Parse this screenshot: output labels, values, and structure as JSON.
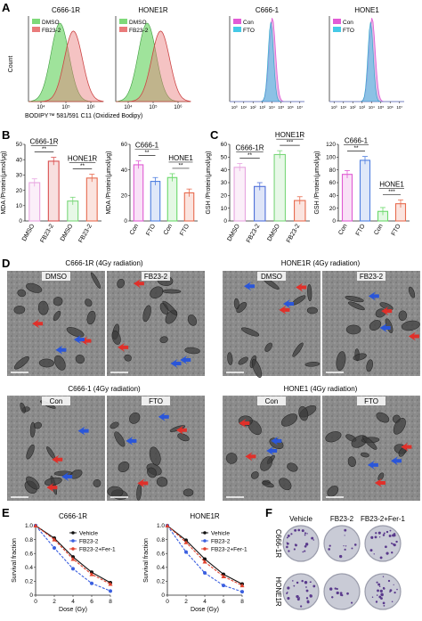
{
  "panels": {
    "A": "A",
    "B": "B",
    "C": "C",
    "D": "D",
    "E": "E",
    "F": "F"
  },
  "panel_a": {
    "flow": [
      {
        "title": "C666-1R",
        "legend": [
          "DMSO",
          "FB23-2"
        ],
        "colors": [
          "#7fd97a",
          "#e97b7b"
        ]
      },
      {
        "title": "HONE1R",
        "legend": [
          "DMSO",
          "FB23-2"
        ],
        "colors": [
          "#7fd97a",
          "#e97b7b"
        ]
      },
      {
        "title": "C666-1",
        "legend": [
          "Con",
          "FTO"
        ],
        "colors": [
          "#e25bd6",
          "#45c9e6"
        ]
      },
      {
        "title": "HONE1",
        "legend": [
          "Con",
          "FTO"
        ],
        "colors": [
          "#e25bd6",
          "#45c9e6"
        ]
      }
    ],
    "ylabel": "Count",
    "xlabel": "BODIPY™ 581/591 C11 (Oxidized Bodipy)",
    "xticks_left": [
      "10⁴",
      "10⁵",
      "10⁶"
    ],
    "xticks_right": [
      "10⁰",
      "10¹",
      "10²",
      "10³",
      "10⁴",
      "10⁵",
      "10⁶",
      "10⁷"
    ]
  },
  "chart_data": [
    {
      "type": "bar",
      "panel": "B-left",
      "groups": [
        {
          "label": "C666-1R",
          "categories": [
            "DMSO",
            "FB23-2"
          ],
          "values": [
            25,
            39
          ]
        },
        {
          "label": "HONE1R",
          "categories": [
            "DMSO",
            "FB23-2"
          ],
          "values": [
            13,
            28
          ]
        }
      ],
      "ylabel": "MDA /Protein(μmol/μg)",
      "ylim": [
        0,
        50
      ],
      "yticks": [
        0,
        10,
        20,
        30,
        40,
        50
      ],
      "colors": [
        "#e7a6e0",
        "#d94f4f",
        "#7ad77a",
        "#e76b4f"
      ],
      "significance": [
        "**",
        "**"
      ]
    },
    {
      "type": "bar",
      "panel": "B-right",
      "groups": [
        {
          "label": "C666-1",
          "categories": [
            "Con",
            "FTO"
          ],
          "values": [
            44,
            31
          ]
        },
        {
          "label": "HONE1",
          "categories": [
            "Con",
            "FTO"
          ],
          "values": [
            34,
            22
          ]
        }
      ],
      "ylabel": "MDA /Protein(μmol/μg)",
      "ylim": [
        0,
        60
      ],
      "yticks": [
        0,
        20,
        40,
        60
      ],
      "colors": [
        "#e05bd3",
        "#4f7fe0",
        "#6bd96b",
        "#e76b4f"
      ],
      "significance": [
        "**",
        "**"
      ]
    },
    {
      "type": "bar",
      "panel": "C-left",
      "groups": [
        {
          "label": "C666-1R",
          "categories": [
            "DMSO",
            "FB23-2"
          ],
          "values": [
            42,
            27
          ]
        },
        {
          "label": "HONE1R",
          "categories": [
            "DMSO",
            "FB23-2"
          ],
          "values": [
            52,
            16
          ]
        }
      ],
      "ylabel": "GSH /Protein(μmol/μg)",
      "ylim": [
        0,
        60
      ],
      "yticks": [
        0,
        10,
        20,
        30,
        40,
        50,
        60
      ],
      "colors": [
        "#e7a6e0",
        "#4f6fd9",
        "#7ad77a",
        "#e76b4f"
      ],
      "significance": [
        "**",
        "***"
      ]
    },
    {
      "type": "bar",
      "panel": "C-right",
      "groups": [
        {
          "label": "C666-1",
          "categories": [
            "Con",
            "FTO"
          ],
          "values": [
            73,
            95
          ]
        },
        {
          "label": "HONE1",
          "categories": [
            "Con",
            "FTO"
          ],
          "values": [
            15,
            27
          ]
        }
      ],
      "ylabel": "GSH /Protein(μmol/μg)",
      "ylim": [
        0,
        120
      ],
      "yticks": [
        0,
        20,
        40,
        60,
        80,
        100,
        120
      ],
      "colors": [
        "#e05bd3",
        "#4f7fe0",
        "#6bd96b",
        "#e76b4f"
      ],
      "significance": [
        "**",
        "***"
      ]
    },
    {
      "type": "line",
      "panel": "E-left",
      "title": "C666-1R",
      "x": [
        0,
        2,
        4,
        6,
        8
      ],
      "series": [
        {
          "name": "Vehicle",
          "values": [
            1.0,
            0.82,
            0.55,
            0.33,
            0.18
          ]
        },
        {
          "name": "FB23-2",
          "values": [
            1.0,
            0.68,
            0.38,
            0.17,
            0.06
          ]
        },
        {
          "name": "FB23-2+Fer-1",
          "values": [
            1.0,
            0.8,
            0.52,
            0.3,
            0.16
          ]
        }
      ],
      "xlabel": "Dose (Gy)",
      "ylabel": "Survival fraction",
      "xlim": [
        0,
        8
      ],
      "ylim": [
        0,
        1.0
      ],
      "yticks": [
        "0",
        "0.2",
        "0.4",
        "0.6",
        "0.8",
        "1.0"
      ],
      "xticks": [
        "0",
        "2",
        "4",
        "6",
        "8"
      ],
      "colors": [
        "#111111",
        "#3a5fe0",
        "#e0402c"
      ]
    },
    {
      "type": "line",
      "panel": "E-right",
      "title": "HONE1R",
      "x": [
        0,
        2,
        4,
        6,
        8
      ],
      "series": [
        {
          "name": "Vehicle",
          "values": [
            1.0,
            0.79,
            0.52,
            0.3,
            0.16
          ]
        },
        {
          "name": "FB23-2",
          "values": [
            1.0,
            0.62,
            0.32,
            0.14,
            0.05
          ]
        },
        {
          "name": "FB23-2+Fer-1",
          "values": [
            1.0,
            0.76,
            0.48,
            0.27,
            0.14
          ]
        }
      ],
      "xlabel": "Dose (Gy)",
      "ylabel": "Survival fraction",
      "xlim": [
        0,
        8
      ],
      "ylim": [
        0,
        1.0
      ],
      "yticks": [
        "0",
        "0.2",
        "0.4",
        "0.6",
        "0.8",
        "1.0"
      ],
      "xticks": [
        "0",
        "2",
        "4",
        "6",
        "8"
      ],
      "colors": [
        "#111111",
        "#3a5fe0",
        "#e0402c"
      ]
    }
  ],
  "panel_d": {
    "top_left_title": "C666-1R (4Gy radiation)",
    "top_right_title": "HONE1R (4Gy radiation)",
    "bottom_left_title": "C666-1 (4Gy radiation)",
    "bottom_right_title": "HONE1 (4Gy radiation)",
    "labels": [
      "DMSO",
      "FB23-2",
      "DMSO",
      "FB23-2",
      "Con",
      "FTO",
      "Con",
      "FTO"
    ]
  },
  "panel_f": {
    "cols": [
      "Vehicle",
      "FB23-2",
      "FB23-2+Fer-1"
    ],
    "rows": [
      "C666-1R",
      "HONE1R"
    ]
  }
}
